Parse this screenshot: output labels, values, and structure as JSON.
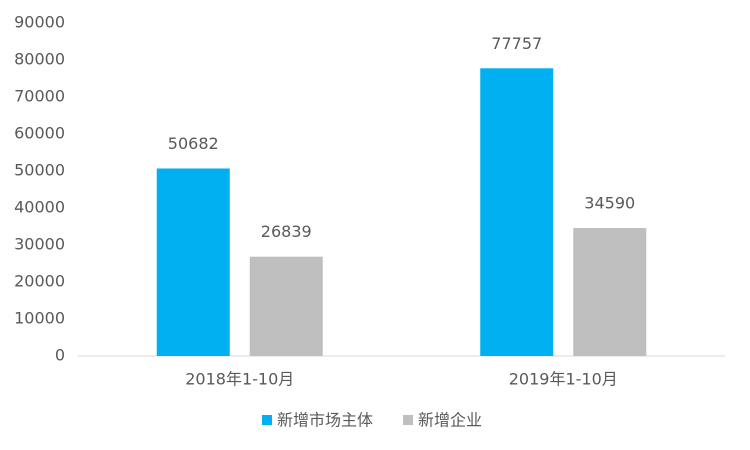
{
  "chart_data": {
    "type": "bar",
    "categories": [
      "2018年1-10月",
      "2019年1-10月"
    ],
    "series": [
      {
        "name": "新增市场主体",
        "color": "#00b0f0",
        "values": [
          50682,
          77757
        ]
      },
      {
        "name": "新增企业",
        "color": "#bfbfbf",
        "values": [
          26839,
          34590
        ]
      }
    ],
    "ylim": [
      0,
      90000
    ],
    "yticks": [
      0,
      10000,
      20000,
      30000,
      40000,
      50000,
      60000,
      70000,
      80000,
      90000
    ],
    "grid": false,
    "legend": "bottom"
  }
}
